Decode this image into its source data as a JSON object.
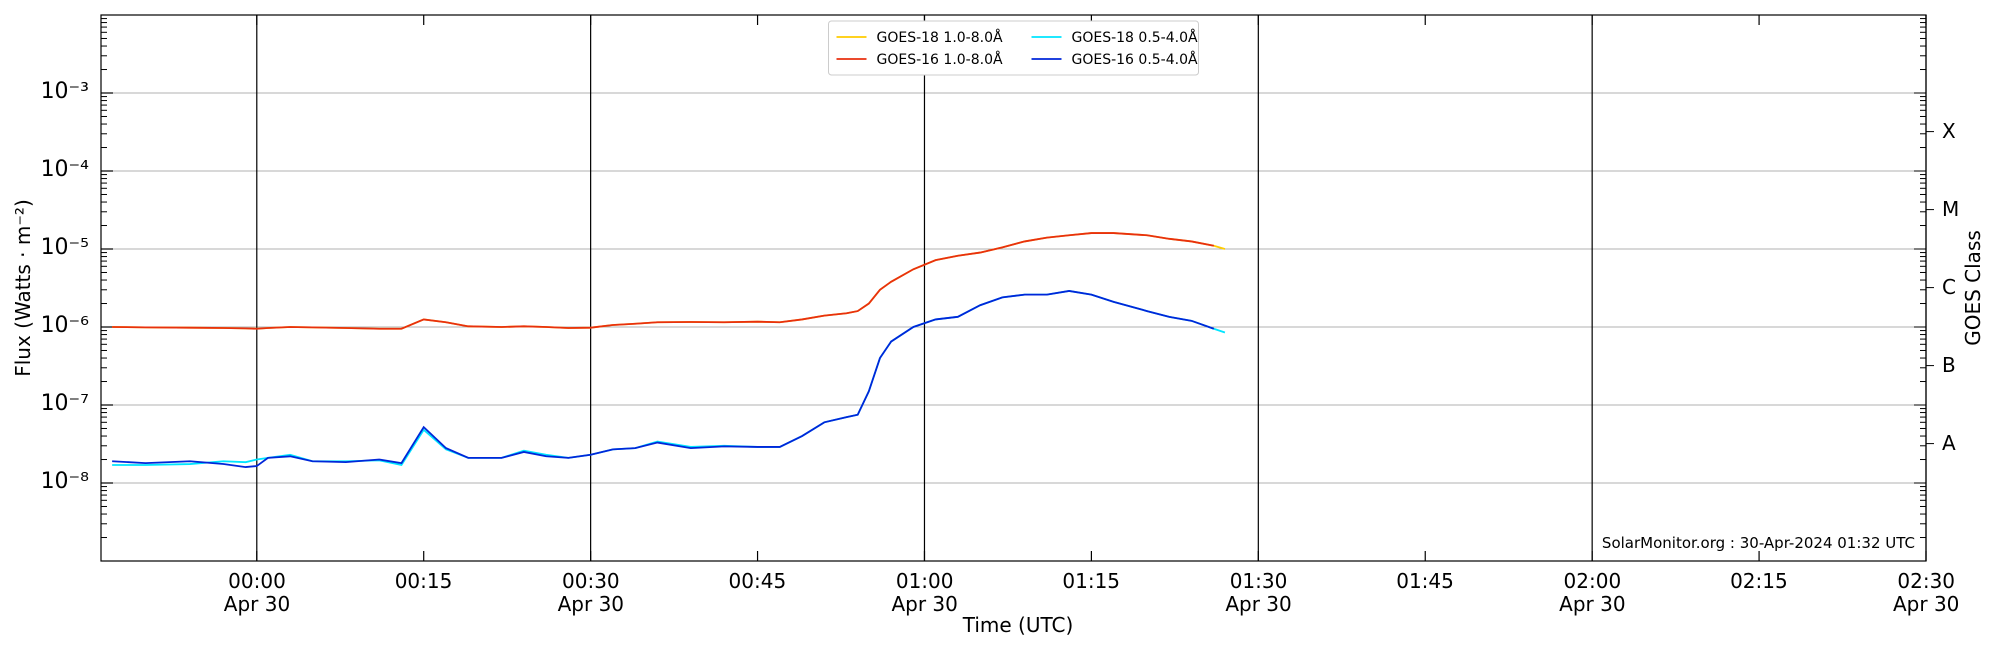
{
  "chart_data": {
    "type": "line",
    "xlabel": "Time (UTC)",
    "ylabel": "Flux (Watts · m⁻²)",
    "y2label": "GOES Class",
    "annotation": "SolarMonitor.org : 30-Apr-2024 01:32 UTC",
    "log_y": true,
    "grid": true,
    "legend": "upper center",
    "xlim": [
      "Apr 29 23:46",
      "Apr 30 02:30"
    ],
    "xticks": [
      {
        "value": "Apr 30 00:00",
        "label": "00:00\nApr 30"
      },
      {
        "value": "Apr 30 00:15",
        "label": "00:15"
      },
      {
        "value": "Apr 30 00:30",
        "label": "00:30\nApr 30"
      },
      {
        "value": "Apr 30 00:45",
        "label": "00:45"
      },
      {
        "value": "Apr 30 01:00",
        "label": "01:00\nApr 30"
      },
      {
        "value": "Apr 30 01:15",
        "label": "01:15"
      },
      {
        "value": "Apr 30 01:30",
        "label": "01:30\nApr 30"
      },
      {
        "value": "Apr 30 01:45",
        "label": "01:45"
      },
      {
        "value": "Apr 30 02:00",
        "label": "02:00\nApr 30"
      },
      {
        "value": "Apr 30 02:15",
        "label": "02:15"
      },
      {
        "value": "Apr 30 02:30",
        "label": "02:30\nApr 30"
      }
    ],
    "ylim": [
      1e-09,
      0.01
    ],
    "yticks": [
      {
        "value": 1e-08,
        "label": "10⁻⁸"
      },
      {
        "value": 1e-07,
        "label": "10⁻⁷"
      },
      {
        "value": 1e-06,
        "label": "10⁻⁶"
      },
      {
        "value": 1e-05,
        "label": "10⁻⁵"
      },
      {
        "value": 0.0001,
        "label": "10⁻⁴"
      },
      {
        "value": 0.001,
        "label": "10⁻³"
      }
    ],
    "y2lim": [
      1e-09,
      0.01
    ],
    "y2ticks": [
      {
        "value": 3.2e-08,
        "label": "A"
      },
      {
        "value": 3.2e-07,
        "label": "B"
      },
      {
        "value": 3.2e-06,
        "label": "C"
      },
      {
        "value": 3.2e-05,
        "label": "M"
      },
      {
        "value": 0.00032,
        "label": "X"
      }
    ],
    "x": [
      "Apr 29 23:47",
      "Apr 29 23:50",
      "Apr 29 23:54",
      "Apr 29 23:57",
      "Apr 29 23:59",
      "Apr 30 00:00",
      "Apr 30 00:01",
      "Apr 30 00:03",
      "Apr 30 00:05",
      "Apr 30 00:08",
      "Apr 30 00:11",
      "Apr 30 00:13",
      "Apr 30 00:15",
      "Apr 30 00:17",
      "Apr 30 00:19",
      "Apr 30 00:22",
      "Apr 30 00:24",
      "Apr 30 00:26",
      "Apr 30 00:28",
      "Apr 30 00:30",
      "Apr 30 00:32",
      "Apr 30 00:34",
      "Apr 30 00:36",
      "Apr 30 00:39",
      "Apr 30 00:42",
      "Apr 30 00:45",
      "Apr 30 00:47",
      "Apr 30 00:49",
      "Apr 30 00:51",
      "Apr 30 00:53",
      "Apr 30 00:54",
      "Apr 30 00:55",
      "Apr 30 00:56",
      "Apr 30 00:57",
      "Apr 30 00:59",
      "Apr 30 01:01",
      "Apr 30 01:03",
      "Apr 30 01:05",
      "Apr 30 01:07",
      "Apr 30 01:09",
      "Apr 30 01:11",
      "Apr 30 01:13",
      "Apr 30 01:15",
      "Apr 30 01:17",
      "Apr 30 01:20",
      "Apr 30 01:22",
      "Apr 30 01:24",
      "Apr 30 01:26",
      "Apr 30 01:27"
    ],
    "series": [
      {
        "name": "GOES-18 1.0-8.0Å",
        "color": "#ffcc00",
        "values": [
          1e-06,
          9.9e-07,
          9.8e-07,
          9.7e-07,
          9.6e-07,
          9.5e-07,
          9.7e-07,
          1e-06,
          9.9e-07,
          9.7e-07,
          9.5e-07,
          9.5e-07,
          1.25e-06,
          1.15e-06,
          1.02e-06,
          1e-06,
          1.02e-06,
          1e-06,
          9.7e-07,
          9.8e-07,
          1.06e-06,
          1.1e-06,
          1.15e-06,
          1.16e-06,
          1.15e-06,
          1.17e-06,
          1.15e-06,
          1.25e-06,
          1.4e-06,
          1.5e-06,
          1.6e-06,
          2e-06,
          3e-06,
          3.8e-06,
          5.5e-06,
          7.2e-06,
          8.2e-06,
          9e-06,
          1.05e-05,
          1.25e-05,
          1.4e-05,
          1.5e-05,
          1.6e-05,
          1.6e-05,
          1.5e-05,
          1.35e-05,
          1.25e-05,
          1.1e-05,
          1e-05
        ]
      },
      {
        "name": "GOES-16 1.0-8.0Å",
        "color": "#e8300f",
        "values": [
          1e-06,
          9.9e-07,
          9.8e-07,
          9.7e-07,
          9.6e-07,
          9.5e-07,
          9.7e-07,
          1e-06,
          9.9e-07,
          9.7e-07,
          9.5e-07,
          9.5e-07,
          1.25e-06,
          1.15e-06,
          1.02e-06,
          1e-06,
          1.02e-06,
          1e-06,
          9.7e-07,
          9.8e-07,
          1.06e-06,
          1.1e-06,
          1.15e-06,
          1.16e-06,
          1.15e-06,
          1.17e-06,
          1.15e-06,
          1.25e-06,
          1.4e-06,
          1.5e-06,
          1.6e-06,
          2e-06,
          3e-06,
          3.8e-06,
          5.5e-06,
          7.2e-06,
          8.2e-06,
          9e-06,
          1.05e-05,
          1.25e-05,
          1.4e-05,
          1.5e-05,
          1.6e-05,
          1.6e-05,
          1.5e-05,
          1.35e-05,
          1.25e-05,
          1.1e-05,
          null
        ]
      },
      {
        "name": "GOES-18 0.5-4.0Å",
        "color": "#00e5ff",
        "values": [
          1.7e-08,
          1.7e-08,
          1.75e-08,
          1.9e-08,
          1.85e-08,
          2e-08,
          2.1e-08,
          2.3e-08,
          1.9e-08,
          1.9e-08,
          1.95e-08,
          1.7e-08,
          4.8e-08,
          2.7e-08,
          2.1e-08,
          2.1e-08,
          2.6e-08,
          2.3e-08,
          2.1e-08,
          2.3e-08,
          2.7e-08,
          2.8e-08,
          3.4e-08,
          2.9e-08,
          3e-08,
          2.9e-08,
          2.9e-08,
          4e-08,
          6e-08,
          7e-08,
          7.5e-08,
          1.5e-07,
          4e-07,
          6.5e-07,
          1e-06,
          1.25e-06,
          1.35e-06,
          1.9e-06,
          2.4e-06,
          2.6e-06,
          2.6e-06,
          2.9e-06,
          2.6e-06,
          2.1e-06,
          1.6e-06,
          1.35e-06,
          1.2e-06,
          9.5e-07,
          8.5e-07
        ]
      },
      {
        "name": "GOES-16 0.5-4.0Å",
        "color": "#0026d9",
        "values": [
          1.9e-08,
          1.8e-08,
          1.9e-08,
          1.75e-08,
          1.6e-08,
          1.65e-08,
          2.1e-08,
          2.2e-08,
          1.9e-08,
          1.85e-08,
          2e-08,
          1.8e-08,
          5.2e-08,
          2.8e-08,
          2.1e-08,
          2.1e-08,
          2.5e-08,
          2.2e-08,
          2.1e-08,
          2.3e-08,
          2.7e-08,
          2.8e-08,
          3.3e-08,
          2.8e-08,
          2.95e-08,
          2.9e-08,
          2.9e-08,
          4e-08,
          6e-08,
          7e-08,
          7.5e-08,
          1.5e-07,
          4e-07,
          6.5e-07,
          1e-06,
          1.25e-06,
          1.35e-06,
          1.9e-06,
          2.4e-06,
          2.6e-06,
          2.6e-06,
          2.9e-06,
          2.6e-06,
          2.1e-06,
          1.6e-06,
          1.35e-06,
          1.2e-06,
          9.5e-07,
          null
        ]
      }
    ]
  }
}
